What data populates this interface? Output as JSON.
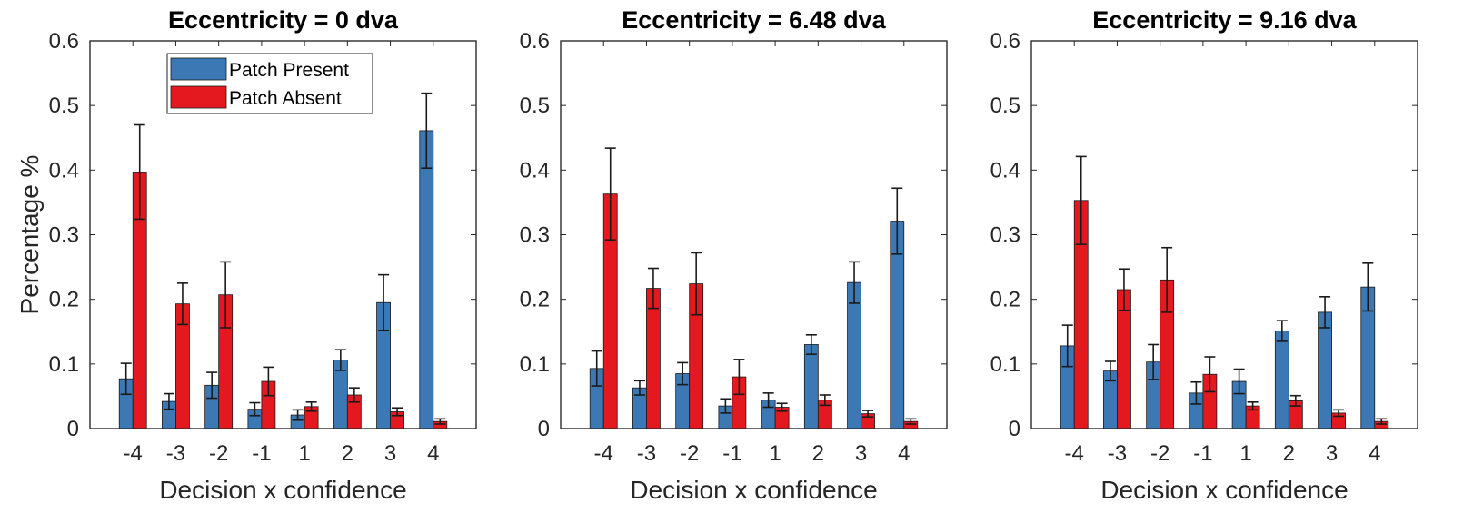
{
  "chart_data": [
    {
      "type": "bar",
      "title": "Eccentricity = 0 dva",
      "xlabel": "Decision x confidence",
      "ylabel": "Percentage %",
      "ylim": [
        0,
        0.6
      ],
      "yticks": [
        "0",
        "0.1",
        "0.2",
        "0.3",
        "0.4",
        "0.5",
        "0.6"
      ],
      "categories": [
        "-4",
        "-3",
        "-2",
        "-1",
        "1",
        "2",
        "3",
        "4"
      ],
      "legend": "top-center",
      "series": [
        {
          "name": "Patch Present",
          "color": "#3c78b4",
          "values": [
            0.077,
            0.042,
            0.067,
            0.03,
            0.021,
            0.106,
            0.195,
            0.461
          ],
          "errors": [
            0.024,
            0.012,
            0.02,
            0.01,
            0.008,
            0.016,
            0.043,
            0.058
          ]
        },
        {
          "name": "Patch Absent",
          "color": "#e4191f",
          "values": [
            0.397,
            0.193,
            0.207,
            0.073,
            0.034,
            0.052,
            0.026,
            0.011
          ],
          "errors": [
            0.073,
            0.032,
            0.051,
            0.022,
            0.007,
            0.011,
            0.006,
            0.004
          ]
        }
      ]
    },
    {
      "type": "bar",
      "title": "Eccentricity = 6.48 dva",
      "xlabel": "Decision x confidence",
      "ylabel": "",
      "ylim": [
        0,
        0.6
      ],
      "yticks": [
        "0",
        "0.1",
        "0.2",
        "0.3",
        "0.4",
        "0.5",
        "0.6"
      ],
      "categories": [
        "-4",
        "-3",
        "-2",
        "-1",
        "1",
        "2",
        "3",
        "4"
      ],
      "series": [
        {
          "name": "Patch Present",
          "color": "#3c78b4",
          "values": [
            0.093,
            0.063,
            0.085,
            0.035,
            0.044,
            0.13,
            0.226,
            0.321
          ],
          "errors": [
            0.027,
            0.011,
            0.017,
            0.011,
            0.011,
            0.015,
            0.032,
            0.051
          ]
        },
        {
          "name": "Patch Absent",
          "color": "#e4191f",
          "values": [
            0.363,
            0.217,
            0.224,
            0.08,
            0.033,
            0.044,
            0.023,
            0.011
          ],
          "errors": [
            0.071,
            0.031,
            0.048,
            0.027,
            0.006,
            0.008,
            0.005,
            0.004
          ]
        }
      ]
    },
    {
      "type": "bar",
      "title": "Eccentricity = 9.16 dva",
      "xlabel": "Decision x confidence",
      "ylabel": "",
      "ylim": [
        0,
        0.6
      ],
      "yticks": [
        "0",
        "0.1",
        "0.2",
        "0.3",
        "0.4",
        "0.5",
        "0.6"
      ],
      "categories": [
        "-4",
        "-3",
        "-2",
        "-1",
        "1",
        "2",
        "3",
        "4"
      ],
      "series": [
        {
          "name": "Patch Present",
          "color": "#3c78b4",
          "values": [
            0.128,
            0.089,
            0.103,
            0.055,
            0.073,
            0.151,
            0.18,
            0.219
          ],
          "errors": [
            0.032,
            0.015,
            0.027,
            0.017,
            0.019,
            0.016,
            0.024,
            0.037
          ]
        },
        {
          "name": "Patch Absent",
          "color": "#e4191f",
          "values": [
            0.353,
            0.215,
            0.23,
            0.084,
            0.035,
            0.043,
            0.024,
            0.011
          ],
          "errors": [
            0.068,
            0.032,
            0.05,
            0.027,
            0.006,
            0.008,
            0.005,
            0.004
          ]
        }
      ]
    }
  ]
}
